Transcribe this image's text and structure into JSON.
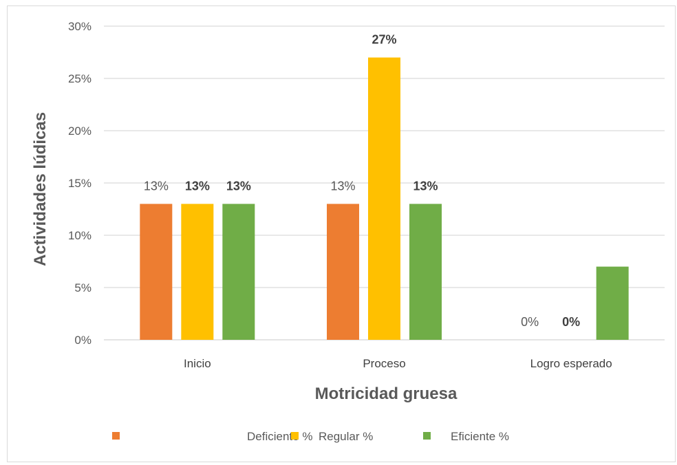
{
  "chart_data": {
    "type": "bar",
    "title": "",
    "xlabel": "Motricidad gruesa",
    "ylabel": "Actividades lúdicas",
    "categories": [
      "Inicio",
      "Proceso",
      "Logro esperado"
    ],
    "ylim": [
      0,
      30
    ],
    "yticks": [
      "0%",
      "5%",
      "10%",
      "15%",
      "20%",
      "25%",
      "30%"
    ],
    "ytick_values": [
      0,
      5,
      10,
      15,
      20,
      25,
      30
    ],
    "grid": true,
    "legend_position": "bottom",
    "series": [
      {
        "name": "Deficiente %",
        "color": "#ED7D31",
        "values": [
          13,
          13,
          0
        ],
        "labels": [
          "13%",
          "13%",
          "0%"
        ],
        "bold_labels": [
          false,
          false,
          false
        ]
      },
      {
        "name": "Regular %",
        "color": "#FFC000",
        "values": [
          13,
          27,
          0
        ],
        "labels": [
          "13%",
          "27%",
          "0%"
        ],
        "bold_labels": [
          true,
          true,
          true
        ]
      },
      {
        "name": "Eficiente %",
        "color": "#70AD47",
        "values": [
          13,
          13,
          7
        ],
        "labels": [
          "13%",
          "13%",
          "7%"
        ],
        "bold_labels": [
          true,
          true,
          true
        ]
      }
    ],
    "hidden_labels": [
      [],
      [],
      [
        2
      ]
    ]
  },
  "legend": {
    "items": [
      "Deficiente %",
      "Regular %",
      "Eficiente %"
    ]
  }
}
